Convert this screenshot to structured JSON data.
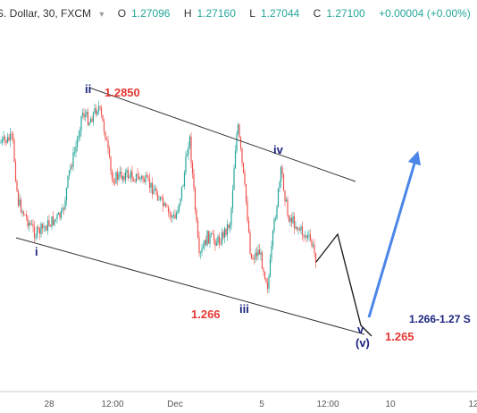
{
  "header": {
    "symbol": "S. Dollar, 30, FXCM",
    "caret": "▾",
    "open_label": "O",
    "open_value": "1.27096",
    "high_label": "H",
    "high_value": "1.27160",
    "low_label": "L",
    "low_value": "1.27044",
    "close_label": "C",
    "close_value": "1.27100",
    "change": "+0.00004 (+0.00%)"
  },
  "chart_data": {
    "type": "candlestick",
    "xaxis_ticks": [
      "28",
      "12:00",
      "Dec",
      "5",
      "12:00",
      "10",
      "12"
    ],
    "grid": false,
    "colors": {
      "up": "#26a69a",
      "down": "#ef5350",
      "wave_label": "#1a237e",
      "price_label": "#e53935",
      "projection": "#4a86e8",
      "channel": "#333333"
    },
    "price_labels": [
      "1.2850",
      "1.266",
      "1.265",
      "1.266-1.27 S"
    ],
    "wave_labels": [
      "i",
      "ii",
      "iii",
      "iv",
      "v",
      "(v)"
    ],
    "channel": {
      "upper_line": {
        "from": "ii",
        "to": "beyond iv"
      },
      "lower_line": {
        "from": "i",
        "to": "(v)"
      }
    },
    "projection": {
      "path": [
        "last candle",
        "small rally",
        "(v) low at 1.265",
        "rally to 1.266-1.27"
      ],
      "arrow": "up"
    }
  }
}
